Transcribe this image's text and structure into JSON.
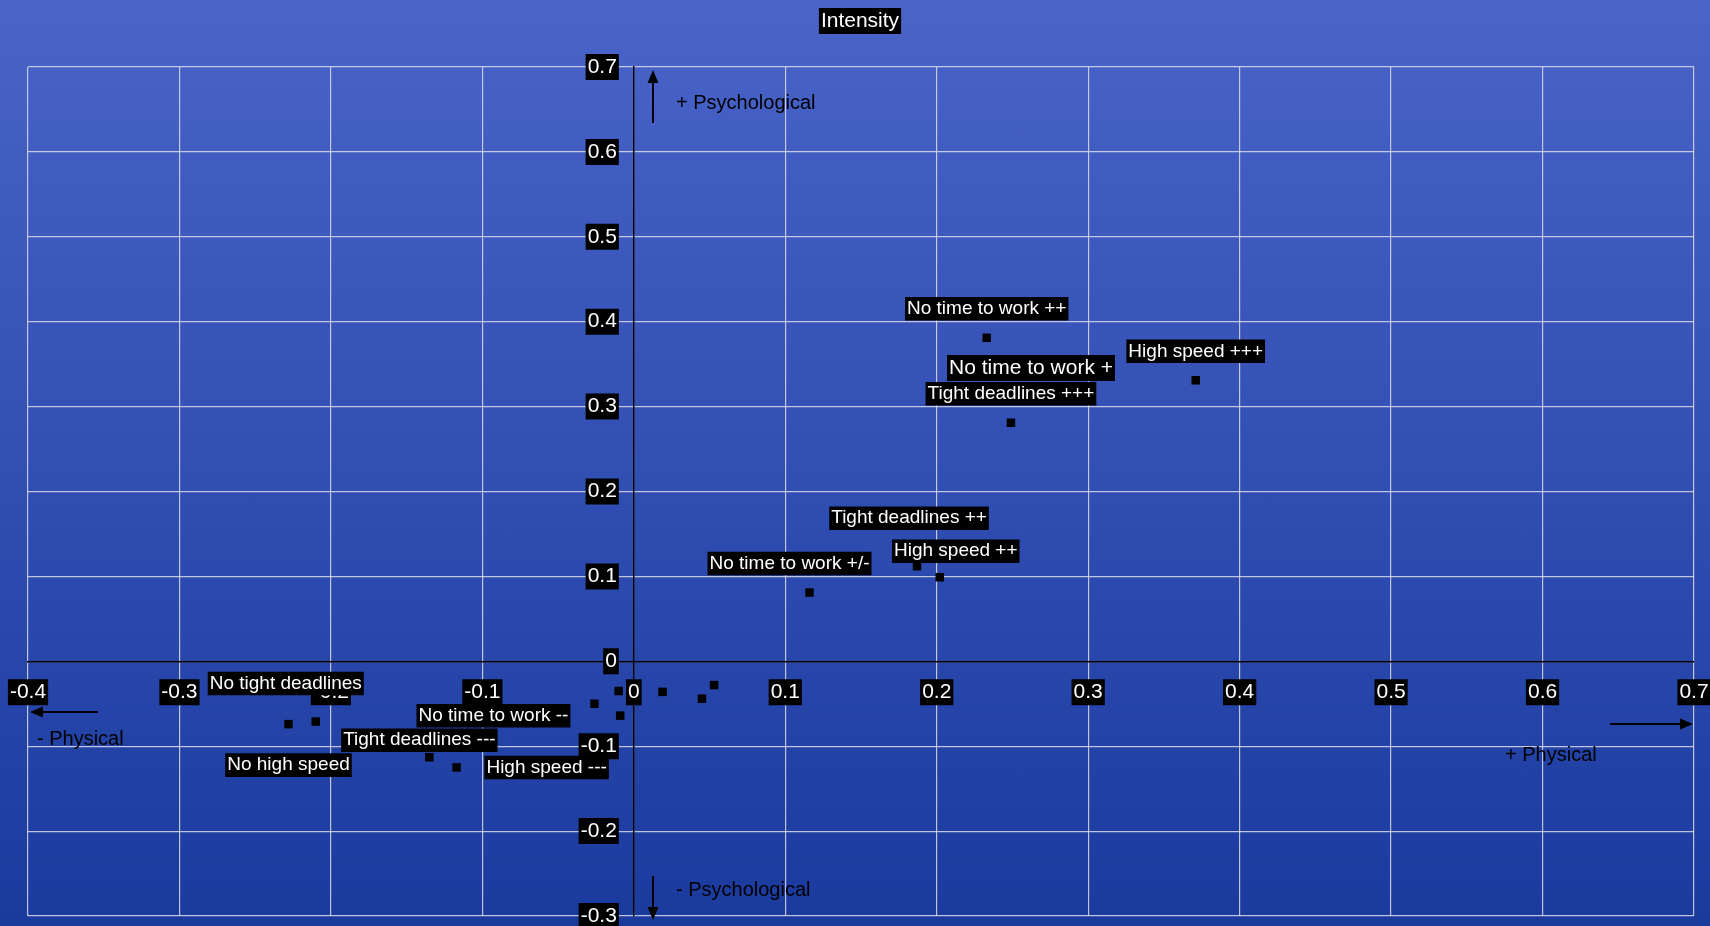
{
  "chart_data": {
    "type": "scatter",
    "title": "Intensity",
    "series": [
      {
        "color": "#000000",
        "x": [
          0.233,
          0.371,
          0.249,
          0.187,
          0.202,
          0.116,
          -0.228,
          -0.21,
          -0.135,
          -0.117,
          -0.026,
          -0.01,
          -0.009,
          0.019,
          0.045,
          0.053
        ],
        "values": [
          0.381,
          0.331,
          0.281,
          0.112,
          0.099,
          0.081,
          -0.074,
          -0.071,
          -0.113,
          -0.125,
          -0.05,
          -0.035,
          -0.064,
          -0.036,
          -0.044,
          -0.028
        ],
        "value_labels": [
          "No time to work ++",
          "High speed +++",
          "Tight deadlines +++",
          "Tight deadlines ++",
          "High speed ++",
          "No time to work +/-",
          "No high speed",
          "No tight deadlines",
          "Tight deadlines ---",
          "High speed ---",
          "No time to work --",
          null,
          null,
          null,
          null,
          null
        ]
      }
    ],
    "marker": "square",
    "xlim": [
      -0.4,
      0.7
    ],
    "xticks": [
      -0.4,
      -0.3,
      -0.2,
      -0.1,
      0,
      0.1,
      0.2,
      0.3,
      0.4,
      0.5,
      0.6,
      0.7
    ],
    "ylim": [
      -0.3,
      0.7
    ],
    "yticks": [
      -0.3,
      -0.2,
      -0.1,
      0,
      0.1,
      0.2,
      0.3,
      0.4,
      0.5,
      0.6,
      0.7
    ],
    "grid": true,
    "annotations": [
      "+ Psychological",
      "- Psychological",
      "- Physical",
      "+ Physical",
      "No time to work +"
    ]
  }
}
